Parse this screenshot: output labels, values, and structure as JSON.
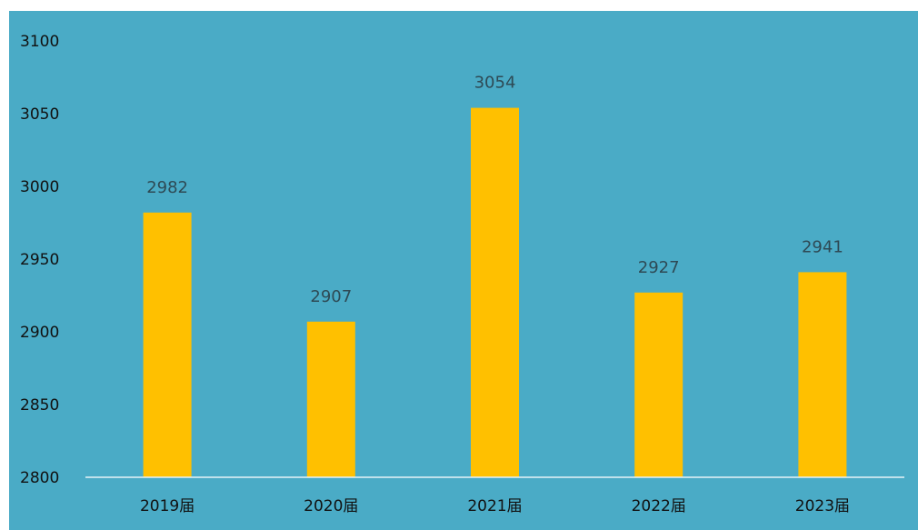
{
  "chart_data": {
    "type": "bar",
    "categories": [
      "2019届",
      "2020届",
      "2021届",
      "2022届",
      "2023届"
    ],
    "values": [
      2982,
      2907,
      3054,
      2927,
      2941
    ],
    "data_labels": [
      "2982",
      "2907",
      "3054",
      "2927",
      "2941"
    ],
    "y_ticks": [
      "2800",
      "2850",
      "2900",
      "2950",
      "3000",
      "3050",
      "3100"
    ],
    "ylim": [
      2800,
      3100
    ],
    "title": "",
    "xlabel": "",
    "ylabel": "",
    "grid": false,
    "legend": "none",
    "colors": {
      "background": "#4aabc6",
      "bar": "#ffc000",
      "axis_line": "#e6f3f7"
    }
  }
}
